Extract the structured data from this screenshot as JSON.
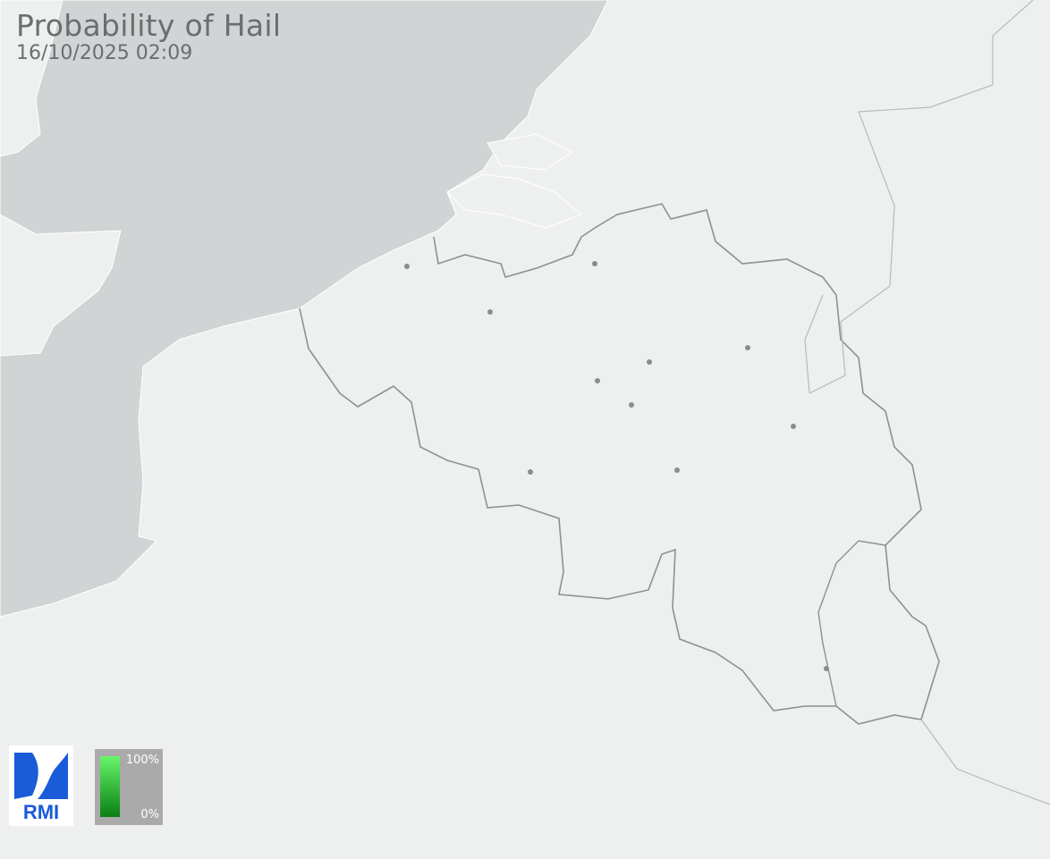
{
  "map": {
    "title": "Probability of Hail",
    "timestamp": "16/10/2025 02:09",
    "colors": {
      "land": "#eef0ef",
      "sea": "#d1d4d5",
      "border": "#8e9091",
      "city": "#8a8c8d"
    },
    "cities_shown": 11
  },
  "logo": {
    "text": "RMI",
    "color": "#1a5bd8"
  },
  "legend": {
    "max_label": "100%",
    "min_label": "0%",
    "gradient": [
      "#66f56a",
      "#0a7f14"
    ]
  }
}
